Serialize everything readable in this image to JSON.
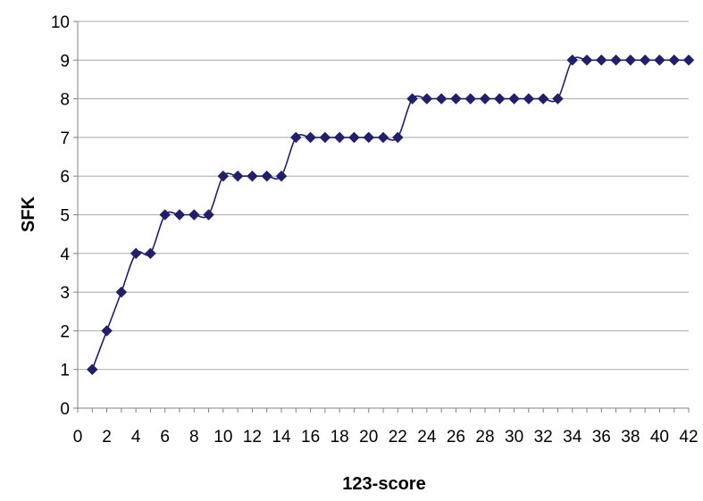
{
  "chart_data": {
    "type": "line",
    "title": "",
    "xlabel": "123-score",
    "ylabel": "SFK",
    "xlim": [
      0,
      42
    ],
    "ylim": [
      0,
      10
    ],
    "x_ticks": [
      0,
      2,
      4,
      6,
      8,
      10,
      12,
      14,
      16,
      18,
      20,
      22,
      24,
      26,
      28,
      30,
      32,
      34,
      36,
      38,
      40,
      42
    ],
    "y_ticks": [
      0,
      1,
      2,
      3,
      4,
      5,
      6,
      7,
      8,
      9,
      10
    ],
    "grid": "horizontal",
    "line_color": "#1f1f6b",
    "marker": "diamond",
    "marker_color": "#1f1f6b",
    "series": [
      {
        "x": [
          1,
          2,
          3,
          4,
          5,
          6,
          7,
          8,
          9,
          10,
          11,
          12,
          13,
          14,
          15,
          16,
          17,
          18,
          19,
          20,
          21,
          22,
          23,
          24,
          25,
          26,
          27,
          28,
          29,
          30,
          31,
          32,
          33,
          34,
          35,
          36,
          37,
          38,
          39,
          40,
          41,
          42
        ],
        "y": [
          1,
          2,
          3,
          4,
          4,
          5,
          5,
          5,
          5,
          6,
          6,
          6,
          6,
          6,
          7,
          7,
          7,
          7,
          7,
          7,
          7,
          7,
          8,
          8,
          8,
          8,
          8,
          8,
          8,
          8,
          8,
          8,
          8,
          9,
          9,
          9,
          9,
          9,
          9,
          9,
          9,
          9
        ]
      }
    ]
  }
}
